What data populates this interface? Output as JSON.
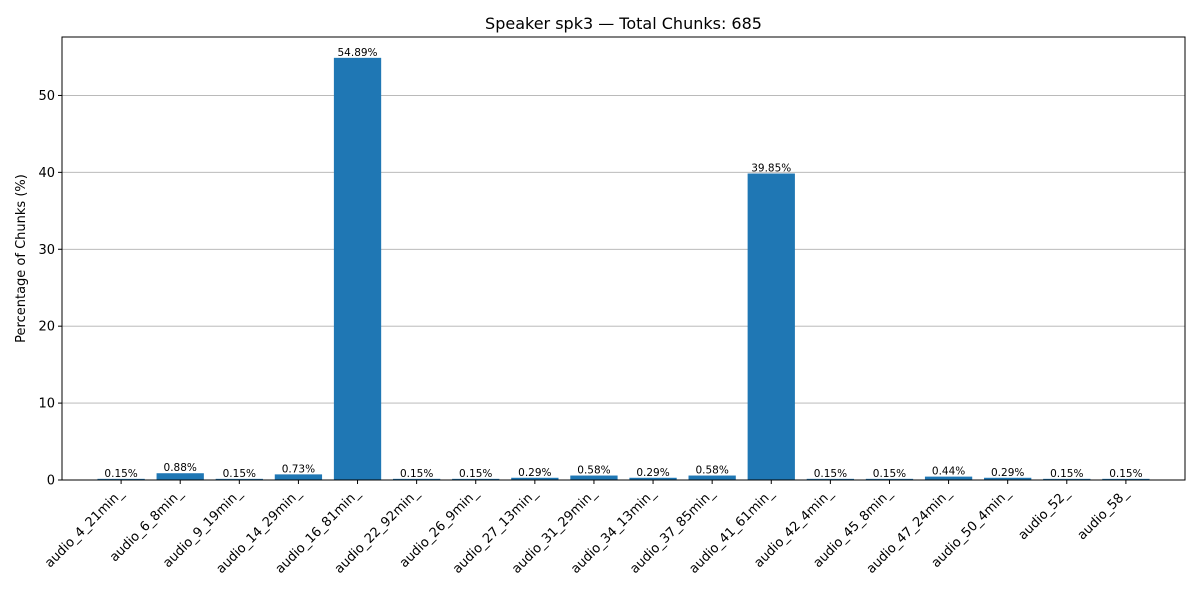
{
  "chart_data": {
    "type": "bar",
    "title": "Speaker spk3 — Total Chunks: 685",
    "xlabel": "",
    "ylabel": "Percentage of Chunks (%)",
    "ylim": [
      0,
      57.6
    ],
    "yticks": [
      0,
      10,
      20,
      30,
      40,
      50
    ],
    "grid": "y-axis",
    "color": "#1f77b4",
    "categories": [
      "audio_4_21min_",
      "audio_6_8min_",
      "audio_9_19min_",
      "audio_14_29min_",
      "audio_16_81min_",
      "audio_22_92min_",
      "audio_26_9min_",
      "audio_27_13min_",
      "audio_31_29min_",
      "audio_34_13min_",
      "audio_37_85min_",
      "audio_41_61min_",
      "audio_42_4min_",
      "audio_45_8min_",
      "audio_47_24min_",
      "audio_50_4min_",
      "audio_52_",
      "audio_58_"
    ],
    "values": [
      0.15,
      0.88,
      0.15,
      0.73,
      54.89,
      0.15,
      0.15,
      0.29,
      0.58,
      0.29,
      0.58,
      39.85,
      0.15,
      0.15,
      0.44,
      0.29,
      0.15,
      0.15
    ],
    "data_labels": [
      "0.15%",
      "0.88%",
      "0.15%",
      "0.73%",
      "54.89%",
      "0.15%",
      "0.15%",
      "0.29%",
      "0.58%",
      "0.29%",
      "0.58%",
      "39.85%",
      "0.15%",
      "0.15%",
      "0.44%",
      "0.29%",
      "0.15%",
      "0.15%"
    ]
  }
}
